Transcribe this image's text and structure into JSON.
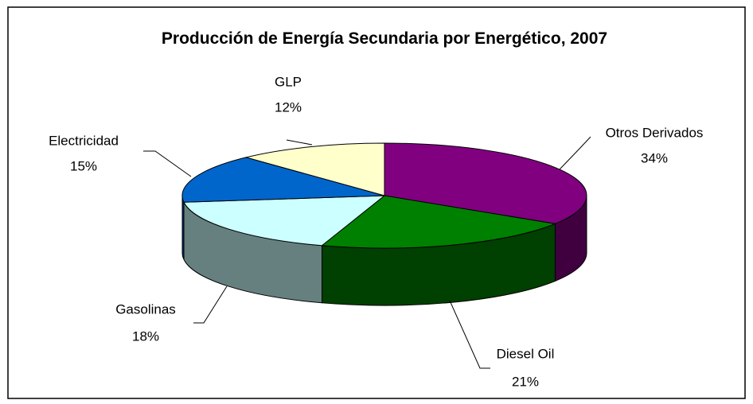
{
  "chart_data": {
    "type": "pie3d",
    "title": "Producción de Energía Secundaria por Energético, 2007",
    "categories": [
      "Otros Derivados",
      "Diesel Oil",
      "Gasolinas",
      "Electricidad",
      "GLP"
    ],
    "values": [
      34,
      21,
      18,
      15,
      12
    ],
    "value_labels": [
      "34%",
      "21%",
      "18%",
      "15%",
      "12%"
    ],
    "colors": [
      "#800080",
      "#008000",
      "#ccffff",
      "#0066cc",
      "#ffffcc"
    ]
  }
}
